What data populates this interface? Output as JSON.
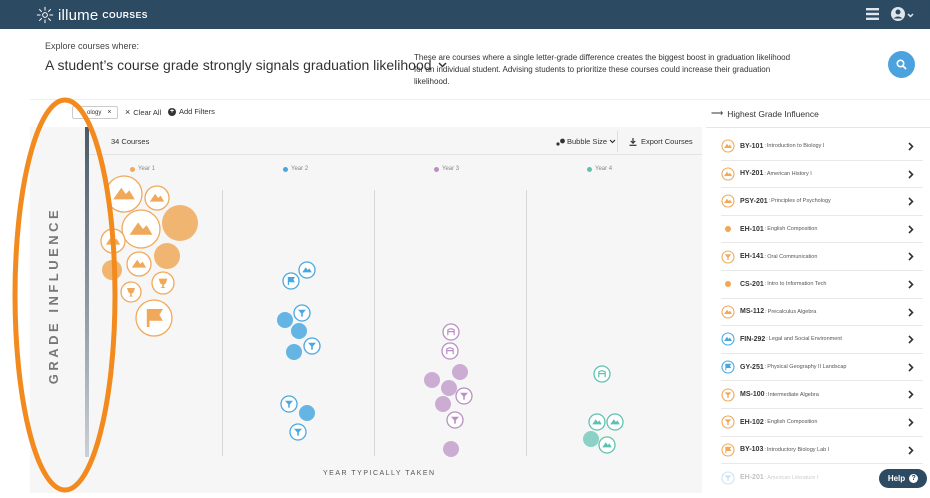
{
  "app": {
    "brand": "illume",
    "product": "COURSES",
    "menu_icon": "hamburger-menu-icon",
    "user_icon": "user-circle-icon"
  },
  "header": {
    "explore_label": "Explore courses where:",
    "headline": "A student’s course grade strongly signals graduation likelihood",
    "description": "These are courses where a single letter-grade difference creates the biggest boost in graduation likelihood for an individual student. Advising students to prioritize these courses could increase their graduation likelihood.",
    "search_icon": "search-icon"
  },
  "filters": {
    "chip_label": "ology",
    "clear_all": "Clear All",
    "add_filters": "Add Filters"
  },
  "chart": {
    "count_label": "34 Courses",
    "bubble_size": "Bubble Size",
    "export": "Export Courses",
    "x_axis_title": "YEAR TYPICALLY TAKEN",
    "y_axis_title": "GRADE INFLUENCE",
    "years": [
      {
        "label": "Year 1",
        "color": "#f0a95a"
      },
      {
        "label": "Year 2",
        "color": "#4aa8e0"
      },
      {
        "label": "Year 3",
        "color": "#b98fc4"
      },
      {
        "label": "Year 4",
        "color": "#5ec2b0"
      }
    ]
  },
  "colors": {
    "navy": "#2d4a63",
    "orange": "#f0a95a",
    "blue": "#4aa8e0",
    "purple": "#b98fc4",
    "teal": "#5ec2b0",
    "annotation": "#f28a1e"
  },
  "sidebar": {
    "title": "Highest Grade Influence",
    "items": [
      {
        "code": "BY-101",
        "name": "Introduction to Biology I",
        "color": "#f0a95a",
        "icon": "mountain-icon"
      },
      {
        "code": "HY-201",
        "name": "American History I",
        "color": "#f0a95a",
        "icon": "mountain-icon"
      },
      {
        "code": "PSY-201",
        "name": "Principles of Psychology",
        "color": "#f0a95a",
        "icon": "mountain-icon"
      },
      {
        "code": "EH-101",
        "name": "English Composition",
        "color": "#f0a95a",
        "icon": "dot-icon"
      },
      {
        "code": "EH-141",
        "name": "Oral Communication",
        "color": "#f0a95a",
        "icon": "funnel-icon"
      },
      {
        "code": "CS-201",
        "name": "Intro to Information Tech",
        "color": "#f0a95a",
        "icon": "dot-icon"
      },
      {
        "code": "MS-112",
        "name": "Precalculus Algebra",
        "color": "#f0a95a",
        "icon": "mountain-icon"
      },
      {
        "code": "FIN-292",
        "name": "Legal and Social Environment",
        "color": "#4aa8e0",
        "icon": "mountain-icon"
      },
      {
        "code": "GY-251",
        "name": "Physical Geography II Landscap",
        "color": "#4aa8e0",
        "icon": "flag-icon"
      },
      {
        "code": "MS-100",
        "name": "Intermediate Algebra",
        "color": "#f0a95a",
        "icon": "funnel-icon"
      },
      {
        "code": "EH-102",
        "name": "English Composition",
        "color": "#f0a95a",
        "icon": "funnel-icon"
      },
      {
        "code": "BY-103",
        "name": "Introductory Biology Lab I",
        "color": "#f0a95a",
        "icon": "flag-icon"
      },
      {
        "code": "EH-201",
        "name": "American Literature I",
        "color": "#4aa8e0",
        "icon": "funnel-icon"
      }
    ]
  },
  "help": {
    "label": "Help"
  }
}
